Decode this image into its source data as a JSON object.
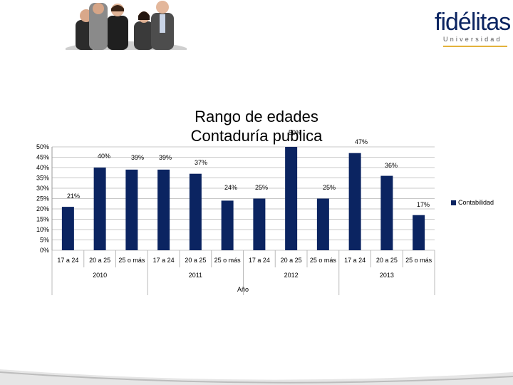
{
  "logo": {
    "brand": "fidélitas",
    "subtitle": "Universidad"
  },
  "chart_data": {
    "type": "bar",
    "title": "Rango de edades Contaduría publica",
    "xlabel": "Año",
    "ylabel": "",
    "ylim": [
      0,
      50
    ],
    "yticks": [
      "0%",
      "5%",
      "10%",
      "15%",
      "20%",
      "25%",
      "30%",
      "35%",
      "40%",
      "45%",
      "50%"
    ],
    "groups": [
      "2010",
      "2011",
      "2012",
      "2013"
    ],
    "categories": [
      "17 a 24",
      "20 a 25",
      "25 o más",
      "17 a 24",
      "20 a 25",
      "25 o más",
      "17 a 24",
      "20 a 25",
      "25 o más",
      "17 a 24",
      "20 a 25",
      "25 o más"
    ],
    "series": [
      {
        "name": "Contabilidad",
        "values": [
          21,
          40,
          39,
          39,
          37,
          24,
          25,
          50,
          25,
          47,
          36,
          17
        ],
        "labels": [
          "21%",
          "40%",
          "39%",
          "39%",
          "37%",
          "24%",
          "25%",
          "50%",
          "25%",
          "47%",
          "36%",
          "17%"
        ]
      }
    ],
    "colors": {
      "bar": "#0b2461",
      "grid": "#c8c8c8"
    },
    "grid": true,
    "legend": "right"
  }
}
